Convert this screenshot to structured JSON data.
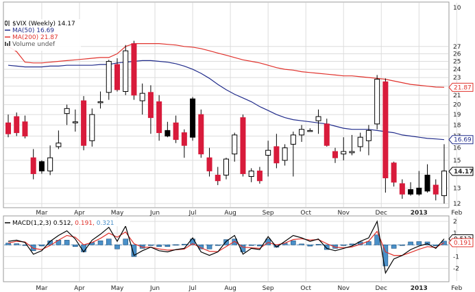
{
  "chart_data": [
    {
      "type": "candlestick",
      "title": "$VIX (Weekly) 14.17",
      "legend": [
        {
          "label": "$VIX (Weekly) 14.17",
          "color": "#000000",
          "icon": "candle-icon"
        },
        {
          "label": "MA(50) 16.69",
          "color": "#1f2a8a",
          "icon": "line-icon"
        },
        {
          "label": "MA(200) 21.87",
          "color": "#e0302a",
          "icon": "line-icon"
        },
        {
          "label": "Volume undef",
          "color": "#555555",
          "icon": "bars-icon"
        }
      ],
      "legend_position": "top-left",
      "yscale": "log",
      "ylim": [
        12,
        30
      ],
      "y_ticks": [
        "10",
        "12",
        "13",
        "14",
        "15",
        "16",
        "17",
        "18",
        "19",
        "20",
        "21",
        "22",
        "23",
        "24",
        "25",
        "26",
        "27"
      ],
      "x_labels": [
        "Mar",
        "Apr",
        "May",
        "Jun",
        "Jul",
        "Aug",
        "Sep",
        "Oct",
        "Nov",
        "Dec",
        "2013",
        "Feb"
      ],
      "x_label_positions": [
        4,
        8.5,
        13,
        17.5,
        22,
        26.5,
        31,
        35.5,
        40,
        44.5,
        49,
        53.5
      ],
      "grid": true,
      "price_tags": [
        {
          "label": "21.87",
          "color": "#e0302a",
          "bold": false,
          "value": 21.87
        },
        {
          "label": "16.69",
          "color": "#1f2a8a",
          "bold": false,
          "value": 16.69
        },
        {
          "label": "14.17",
          "color": "#000000",
          "bold": true,
          "value": 14.17
        }
      ],
      "colors": {
        "up": "#ffffff",
        "down": "#d81b3b",
        "up_filled_black": "#000000",
        "ma50": "#1f2a8a",
        "ma200": "#e0302a",
        "grid": "#dcdcdc"
      },
      "candles": [
        {
          "o": 18.2,
          "h": 19.0,
          "l": 16.9,
          "c": 17.2
        },
        {
          "o": 18.8,
          "h": 19.2,
          "l": 17.0,
          "c": 17.3
        },
        {
          "o": 18.3,
          "h": 18.9,
          "l": 16.8,
          "c": 17.0
        },
        {
          "o": 15.2,
          "h": 15.9,
          "l": 13.6,
          "c": 14.0
        },
        {
          "o": 14.2,
          "h": 15.0,
          "l": 14.0,
          "c": 14.9,
          "filled": true
        },
        {
          "o": 14.2,
          "h": 16.2,
          "l": 13.9,
          "c": 15.2
        },
        {
          "o": 16.1,
          "h": 17.5,
          "l": 15.9,
          "c": 16.4
        },
        {
          "o": 19.1,
          "h": 20.0,
          "l": 18.0,
          "c": 19.6
        },
        {
          "o": 18.2,
          "h": 19.5,
          "l": 17.4,
          "c": 18.3
        },
        {
          "o": 20.4,
          "h": 20.9,
          "l": 15.8,
          "c": 16.2
        },
        {
          "o": 16.6,
          "h": 19.6,
          "l": 16.1,
          "c": 19.0
        },
        {
          "o": 20.2,
          "h": 21.4,
          "l": 19.6,
          "c": 20.3
        },
        {
          "o": 21.3,
          "h": 25.2,
          "l": 20.5,
          "c": 25.0
        },
        {
          "o": 24.6,
          "h": 25.4,
          "l": 21.4,
          "c": 21.6
        },
        {
          "o": 21.4,
          "h": 27.2,
          "l": 21.0,
          "c": 26.4
        },
        {
          "o": 27.4,
          "h": 27.8,
          "l": 20.5,
          "c": 21.0
        },
        {
          "o": 20.4,
          "h": 22.3,
          "l": 19.0,
          "c": 21.2
        },
        {
          "o": 21.3,
          "h": 22.1,
          "l": 17.2,
          "c": 18.7
        },
        {
          "o": 20.3,
          "h": 21.0,
          "l": 16.6,
          "c": 17.3
        },
        {
          "o": 17.5,
          "h": 18.3,
          "l": 16.9,
          "c": 17.0,
          "filled": true
        },
        {
          "o": 18.2,
          "h": 18.9,
          "l": 16.4,
          "c": 16.7
        },
        {
          "o": 17.3,
          "h": 17.6,
          "l": 15.2,
          "c": 16.2
        },
        {
          "o": 16.9,
          "h": 20.8,
          "l": 16.6,
          "c": 20.6,
          "filled": true
        },
        {
          "o": 19.0,
          "h": 19.5,
          "l": 15.2,
          "c": 15.5
        },
        {
          "o": 15.2,
          "h": 16.0,
          "l": 13.8,
          "c": 14.2
        },
        {
          "o": 13.9,
          "h": 14.5,
          "l": 13.2,
          "c": 13.5
        },
        {
          "o": 13.9,
          "h": 15.2,
          "l": 13.6,
          "c": 15.1
        },
        {
          "o": 15.5,
          "h": 17.3,
          "l": 14.9,
          "c": 17.1
        },
        {
          "o": 18.7,
          "h": 19.0,
          "l": 13.8,
          "c": 14.0
        },
        {
          "o": 13.8,
          "h": 14.4,
          "l": 13.4,
          "c": 14.2
        },
        {
          "o": 14.2,
          "h": 14.5,
          "l": 13.3,
          "c": 13.5
        },
        {
          "o": 15.4,
          "h": 16.6,
          "l": 13.8,
          "c": 15.8
        },
        {
          "o": 16.1,
          "h": 17.2,
          "l": 14.4,
          "c": 14.8
        },
        {
          "o": 15.0,
          "h": 16.3,
          "l": 14.6,
          "c": 16.0
        },
        {
          "o": 16.3,
          "h": 17.4,
          "l": 13.8,
          "c": 17.1
        },
        {
          "o": 17.1,
          "h": 18.0,
          "l": 16.5,
          "c": 17.6
        },
        {
          "o": 17.5,
          "h": 17.7,
          "l": 17.4,
          "c": 17.5
        },
        {
          "o": 18.4,
          "h": 19.5,
          "l": 17.2,
          "c": 18.8
        },
        {
          "o": 18.1,
          "h": 18.6,
          "l": 16.1,
          "c": 16.2
        },
        {
          "o": 15.7,
          "h": 16.0,
          "l": 14.8,
          "c": 15.2
        },
        {
          "o": 15.5,
          "h": 16.9,
          "l": 15.0,
          "c": 15.7
        },
        {
          "o": 15.6,
          "h": 17.1,
          "l": 15.4,
          "c": 15.7
        },
        {
          "o": 16.1,
          "h": 17.3,
          "l": 15.7,
          "c": 16.9
        },
        {
          "o": 16.6,
          "h": 18.0,
          "l": 15.4,
          "c": 17.5
        },
        {
          "o": 18.1,
          "h": 23.3,
          "l": 17.6,
          "c": 22.8
        },
        {
          "o": 22.5,
          "h": 22.9,
          "l": 12.7,
          "c": 13.7
        },
        {
          "o": 14.8,
          "h": 14.9,
          "l": 13.1,
          "c": 13.4
        },
        {
          "o": 13.3,
          "h": 13.6,
          "l": 12.3,
          "c": 12.6
        },
        {
          "o": 12.9,
          "h": 13.4,
          "l": 12.5,
          "c": 12.6,
          "filled": true
        },
        {
          "o": 12.6,
          "h": 14.2,
          "l": 12.5,
          "c": 13.0,
          "filled": true
        },
        {
          "o": 12.8,
          "h": 14.7,
          "l": 12.7,
          "c": 13.9,
          "filled": true
        },
        {
          "o": 13.2,
          "h": 13.6,
          "l": 12.2,
          "c": 12.6
        },
        {
          "o": 12.5,
          "h": 16.3,
          "l": 12.0,
          "c": 14.2
        }
      ],
      "ma200": [
        27.0,
        26.3,
        24.9,
        24.8,
        24.8,
        24.9,
        25.0,
        25.1,
        25.2,
        25.3,
        25.4,
        25.5,
        25.5,
        26.0,
        27.0,
        27.4,
        27.4,
        27.4,
        27.4,
        27.3,
        27.2,
        27.0,
        26.9,
        26.7,
        26.4,
        26.1,
        25.8,
        25.5,
        25.2,
        25.0,
        24.8,
        24.5,
        24.2,
        24.0,
        23.9,
        23.7,
        23.6,
        23.5,
        23.4,
        23.3,
        23.2,
        23.2,
        23.1,
        23.0,
        22.9,
        22.8,
        22.6,
        22.4,
        22.2,
        22.1,
        22.0,
        21.9,
        21.87
      ],
      "ma50": [
        24.5,
        24.4,
        24.3,
        24.3,
        24.3,
        24.4,
        24.4,
        24.5,
        24.5,
        24.5,
        24.5,
        24.6,
        24.6,
        24.8,
        24.9,
        25.0,
        25.1,
        25.1,
        25.0,
        24.9,
        24.7,
        24.4,
        24.0,
        23.5,
        22.9,
        22.2,
        21.6,
        21.1,
        20.7,
        20.3,
        19.8,
        19.4,
        19.0,
        18.7,
        18.5,
        18.4,
        18.3,
        18.2,
        18.1,
        17.9,
        17.7,
        17.6,
        17.6,
        17.6,
        17.5,
        17.4,
        17.3,
        17.1,
        17.0,
        16.9,
        16.8,
        16.75,
        16.69
      ]
    },
    {
      "type": "macd",
      "title": "MACD(1,2,3) 0.512, 0.191, 0.321",
      "legend": [
        {
          "label": "MACD(1,2,3) 0.512, ",
          "color": "#000000"
        },
        {
          "label": "0.191, ",
          "color": "#e0302a"
        },
        {
          "label": "0.321",
          "color": "#4a90c8"
        }
      ],
      "ylim": [
        -2.5,
        2
      ],
      "y_ticks": [
        "2",
        "1",
        "0",
        "-1",
        "-2"
      ],
      "price_tags": [
        {
          "label": "0.512",
          "color": "#000000",
          "value": 0.512
        },
        {
          "label": "0.191",
          "color": "#e0302a",
          "value": 0.191
        }
      ],
      "x_labels": [
        "Mar",
        "Apr",
        "May",
        "Jun",
        "Jul",
        "Aug",
        "Sep",
        "Oct",
        "Nov",
        "Dec",
        "2013",
        "Feb"
      ],
      "x_label_positions": [
        4,
        8.5,
        13,
        17.5,
        22,
        26.5,
        31,
        35.5,
        40,
        44.5,
        49,
        53.5
      ],
      "macd": [
        0.3,
        0.4,
        0.2,
        -0.8,
        -0.5,
        0.3,
        0.8,
        1.2,
        0.5,
        -0.6,
        0.4,
        0.9,
        1.5,
        0.3,
        1.6,
        -0.9,
        -0.5,
        -0.2,
        -0.5,
        -0.6,
        -0.4,
        -0.3,
        0.6,
        -0.6,
        -0.9,
        -0.6,
        0.3,
        0.8,
        -0.8,
        -0.3,
        -0.4,
        0.7,
        -0.2,
        0.3,
        0.8,
        0.6,
        0.3,
        0.5,
        -0.3,
        -0.5,
        -0.3,
        -0.1,
        0.3,
        0.6,
        2.0,
        -2.4,
        -1.2,
        -0.9,
        -0.4,
        -0.1,
        0.1,
        -0.3,
        0.512
      ],
      "signal": [
        0.15,
        0.3,
        0.25,
        -0.3,
        -0.4,
        -0.05,
        0.4,
        0.8,
        0.65,
        0.0,
        0.2,
        0.55,
        1.0,
        0.65,
        1.1,
        0.1,
        -0.2,
        -0.2,
        -0.35,
        -0.45,
        -0.42,
        -0.36,
        0.1,
        -0.25,
        -0.55,
        -0.58,
        -0.15,
        0.3,
        -0.2,
        -0.25,
        -0.3,
        0.2,
        0.0,
        0.15,
        0.45,
        0.52,
        0.41,
        0.45,
        0.1,
        -0.2,
        -0.25,
        -0.18,
        0.05,
        0.32,
        1.15,
        -0.6,
        -0.9,
        -0.9,
        -0.65,
        -0.38,
        -0.15,
        -0.22,
        0.191
      ],
      "histogram": [
        0.15,
        0.1,
        -0.05,
        -0.5,
        -0.1,
        0.35,
        0.4,
        0.4,
        -0.15,
        -0.6,
        0.2,
        0.35,
        0.5,
        -0.35,
        0.5,
        -1.0,
        -0.3,
        0.0,
        -0.15,
        -0.15,
        0.02,
        0.06,
        0.5,
        -0.35,
        -0.35,
        -0.02,
        0.45,
        0.5,
        -0.6,
        -0.05,
        -0.1,
        0.5,
        -0.2,
        0.15,
        0.35,
        0.08,
        -0.11,
        0.05,
        -0.4,
        -0.3,
        -0.05,
        0.08,
        0.25,
        0.28,
        0.85,
        -1.8,
        -0.3,
        0.0,
        0.25,
        0.28,
        0.25,
        -0.08,
        0.321
      ],
      "colors": {
        "macd": "#000000",
        "signal": "#e0302a",
        "histogram": "#4a90c8",
        "histogram_edge": "#1f4f7a",
        "zero": "#4a90c8"
      }
    }
  ]
}
